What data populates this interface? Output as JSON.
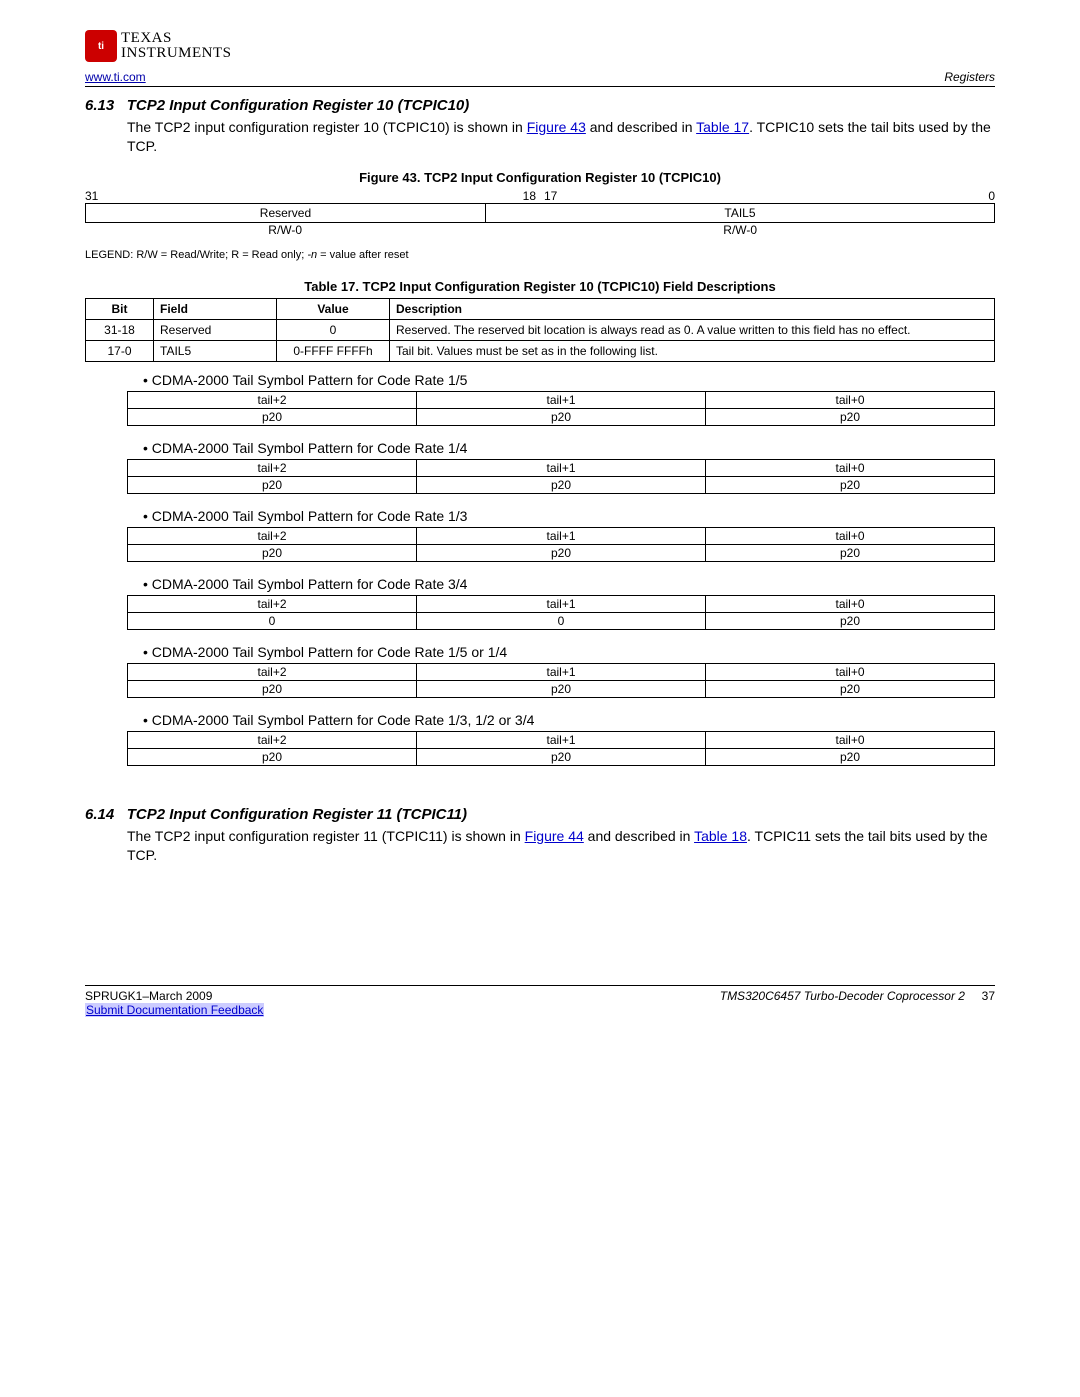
{
  "logo": {
    "line1": "TEXAS",
    "line2": "INSTRUMENTS",
    "mark": "ti"
  },
  "top": {
    "url": "www.ti.com",
    "section": "Registers"
  },
  "s1": {
    "num": "6.13",
    "title": "TCP2 Input Configuration Register 10 (TCPIC10)",
    "para_a": "The TCP2 input configuration register 10 (TCPIC10) is shown in ",
    "link1": "Figure 43",
    "para_b": " and described in ",
    "link2": "Table 17",
    "para_c": ". TCPIC10 sets the tail bits used by the TCP."
  },
  "fig43": {
    "caption": "Figure 43. TCP2 Input Configuration Register 10 (TCPIC10)",
    "b31": "31",
    "b18": "18",
    "b17": "17",
    "b0": "0",
    "f1": "Reserved",
    "f2": "TAIL5",
    "rw1": "R/W-0",
    "rw2": "R/W-0"
  },
  "legend": {
    "a": "LEGEND: R/W = Read/Write; R = Read only; ",
    "b": "-n",
    "c": " = value after reset"
  },
  "tbl17": {
    "caption": "Table 17. TCP2 Input Configuration Register 10 (TCPIC10) Field Descriptions",
    "h1": "Bit",
    "h2": "Field",
    "h3": "Value",
    "h4": "Description",
    "r1": {
      "bit": "31-18",
      "field": "Reserved",
      "value": "0",
      "desc": "Reserved. The reserved bit location is always read as 0. A value written to this field has no effect."
    },
    "r2": {
      "bit": "17-0",
      "field": "TAIL5",
      "value": "0-FFFF FFFFh",
      "desc": "Tail bit. Values must be set as in the following list."
    }
  },
  "patterns": [
    {
      "title": "CDMA-2000 Tail Symbol Pattern for Code Rate 1/5",
      "h": [
        "tail+2",
        "tail+1",
        "tail+0"
      ],
      "v": [
        "p20",
        "p20",
        "p20"
      ]
    },
    {
      "title": "CDMA-2000 Tail Symbol Pattern for Code Rate 1/4",
      "h": [
        "tail+2",
        "tail+1",
        "tail+0"
      ],
      "v": [
        "p20",
        "p20",
        "p20"
      ]
    },
    {
      "title": "CDMA-2000 Tail Symbol Pattern for Code Rate 1/3",
      "h": [
        "tail+2",
        "tail+1",
        "tail+0"
      ],
      "v": [
        "p20",
        "p20",
        "p20"
      ]
    },
    {
      "title": "CDMA-2000 Tail Symbol Pattern for Code Rate 3/4",
      "h": [
        "tail+2",
        "tail+1",
        "tail+0"
      ],
      "v": [
        "0",
        "0",
        "p20"
      ]
    },
    {
      "title": "CDMA-2000 Tail Symbol Pattern for Code Rate 1/5 or 1/4",
      "h": [
        "tail+2",
        "tail+1",
        "tail+0"
      ],
      "v": [
        "p20",
        "p20",
        "p20"
      ]
    },
    {
      "title": "CDMA-2000 Tail Symbol Pattern for Code Rate 1/3, 1/2 or 3/4",
      "h": [
        "tail+2",
        "tail+1",
        "tail+0"
      ],
      "v": [
        "p20",
        "p20",
        "p20"
      ]
    }
  ],
  "s2": {
    "num": "6.14",
    "title": "TCP2 Input Configuration Register 11 (TCPIC11)",
    "para_a": "The TCP2 input configuration register 11 (TCPIC11) is shown in ",
    "link1": "Figure 44",
    "para_b": " and described in ",
    "link2": "Table 18",
    "para_c": ". TCPIC11 sets the tail bits used by the TCP."
  },
  "footer": {
    "left1": "SPRUGK1–March 2009",
    "left2": "Submit Documentation Feedback",
    "right1": "TMS320C6457 Turbo-Decoder Coprocessor 2",
    "page": "37"
  }
}
